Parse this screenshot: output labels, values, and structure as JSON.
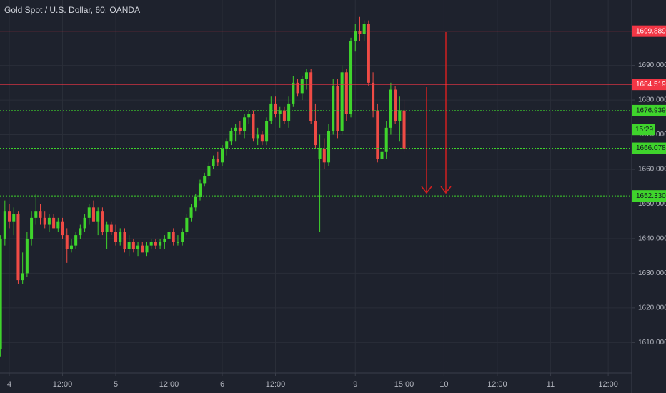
{
  "chart_data": {
    "type": "candlestick",
    "title": "Gold Spot / U.S. Dollar, 60, OANDA",
    "up_color": "#3fd42c",
    "down_color": "#ef4b45",
    "open": [
      1608,
      1640,
      1648,
      1645,
      1647,
      1628,
      1630,
      1640,
      1646,
      1648,
      1646,
      1644,
      1646,
      1643,
      1645,
      1641,
      1637,
      1638,
      1641,
      1643,
      1646,
      1649,
      1645,
      1648,
      1642,
      1644,
      1642,
      1639,
      1642,
      1637,
      1639,
      1637,
      1638,
      1636,
      1638,
      1639,
      1638,
      1639,
      1640,
      1642,
      1639,
      1639,
      1642,
      1646,
      1649,
      1652,
      1656,
      1658,
      1661,
      1663,
      1662,
      1666,
      1668,
      1671,
      1672,
      1671,
      1675,
      1676,
      1669,
      1670,
      1668,
      1674,
      1679,
      1676,
      1677,
      1674,
      1679,
      1685,
      1682,
      1686,
      1688,
      1674,
      1663,
      1666,
      1662,
      1671,
      1684,
      1671,
      1688,
      1676,
      1697,
      1700,
      1699,
      1702,
      1685,
      1677,
      1663,
      1665,
      1672,
      1683,
      1674,
      1677
    ],
    "high": [
      1641,
      1651,
      1650,
      1649,
      1648,
      1636,
      1642,
      1648,
      1653,
      1650,
      1648,
      1647,
      1647,
      1646,
      1646,
      1643,
      1640,
      1642,
      1644,
      1647,
      1650,
      1651,
      1649,
      1649,
      1645,
      1645,
      1644,
      1643,
      1643,
      1641,
      1640,
      1639,
      1639,
      1639,
      1640,
      1640,
      1640,
      1641,
      1643,
      1643,
      1641,
      1643,
      1647,
      1650,
      1653,
      1657,
      1659,
      1662,
      1664,
      1665,
      1667,
      1669,
      1672,
      1673,
      1674,
      1676,
      1677,
      1677,
      1672,
      1671,
      1675,
      1681,
      1681,
      1678,
      1678,
      1681,
      1687,
      1686,
      1687,
      1689,
      1689,
      1679,
      1670,
      1669,
      1673,
      1686,
      1686,
      1690,
      1689,
      1698,
      1702,
      1704,
      1703,
      1703,
      1688,
      1679,
      1667,
      1674,
      1685,
      1684,
      1681,
      1680
    ],
    "low": [
      1606,
      1638,
      1643,
      1641,
      1627,
      1627,
      1629,
      1638,
      1644,
      1644,
      1643,
      1642,
      1643,
      1642,
      1640,
      1633,
      1636,
      1637,
      1640,
      1642,
      1644,
      1645,
      1641,
      1641,
      1637,
      1641,
      1638,
      1638,
      1636,
      1635,
      1636,
      1635,
      1636,
      1635,
      1637,
      1637,
      1637,
      1637,
      1639,
      1638,
      1638,
      1638,
      1641,
      1645,
      1648,
      1651,
      1655,
      1657,
      1660,
      1661,
      1661,
      1664,
      1667,
      1668,
      1670,
      1669,
      1673,
      1668,
      1667,
      1667,
      1667,
      1673,
      1675,
      1672,
      1673,
      1672,
      1678,
      1681,
      1680,
      1683,
      1673,
      1666,
      1642,
      1660,
      1661,
      1670,
      1669,
      1670,
      1674,
      1675,
      1694,
      1697,
      1697,
      1684,
      1675,
      1662,
      1658,
      1663,
      1670,
      1673,
      1668,
      1665
    ],
    "close": [
      1640,
      1648,
      1645,
      1647,
      1628,
      1630,
      1640,
      1646,
      1648,
      1646,
      1644,
      1646,
      1643,
      1645,
      1641,
      1637,
      1638,
      1641,
      1643,
      1646,
      1649,
      1645,
      1648,
      1642,
      1644,
      1642,
      1639,
      1642,
      1637,
      1639,
      1637,
      1638,
      1636,
      1638,
      1639,
      1638,
      1639,
      1640,
      1642,
      1639,
      1639,
      1642,
      1646,
      1649,
      1652,
      1656,
      1658,
      1661,
      1663,
      1662,
      1666,
      1668,
      1671,
      1672,
      1671,
      1675,
      1676,
      1669,
      1670,
      1668,
      1674,
      1679,
      1676,
      1677,
      1674,
      1679,
      1685,
      1682,
      1686,
      1688,
      1674,
      1667,
      1666,
      1662,
      1671,
      1684,
      1671,
      1688,
      1676,
      1697,
      1700,
      1699,
      1702,
      1685,
      1677,
      1663,
      1665,
      1672,
      1683,
      1674,
      1677,
      1666
    ],
    "xlim": [
      -0.1,
      142.3
    ],
    "xticks": [
      {
        "value": 2,
        "label": "4"
      },
      {
        "value": 14,
        "label": "12:00"
      },
      {
        "value": 26,
        "label": "5"
      },
      {
        "value": 38,
        "label": "12:00"
      },
      {
        "value": 50,
        "label": "6"
      },
      {
        "value": 62,
        "label": "12:00"
      },
      {
        "value": 80,
        "label": "9"
      },
      {
        "value": 91,
        "label": "15:00"
      },
      {
        "value": 100,
        "label": "10"
      },
      {
        "value": 112,
        "label": "12:00"
      },
      {
        "value": 124,
        "label": "11"
      },
      {
        "value": 137,
        "label": "12:00"
      }
    ],
    "ylim": [
      1601.2,
      1708.9
    ],
    "yticks": [
      {
        "value": 1610,
        "label": "1610.000"
      },
      {
        "value": 1620,
        "label": "1620.000"
      },
      {
        "value": 1630,
        "label": "1630.000"
      },
      {
        "value": 1640,
        "label": "1640.000"
      },
      {
        "value": 1650,
        "label": "1650.000"
      },
      {
        "value": 1660,
        "label": "1660.000"
      },
      {
        "value": 1670,
        "label": "1670.000"
      },
      {
        "value": 1680,
        "label": "1680.000"
      },
      {
        "value": 1690,
        "label": "1690.000"
      }
    ],
    "grid": true,
    "levels": [
      {
        "value": 1699.889,
        "label": "1699.889",
        "color": "#f23645",
        "style": "solid"
      },
      {
        "value": 1684.519,
        "label": "1684.519",
        "color": "#f23645",
        "style": "solid"
      },
      {
        "value": 1676.939,
        "label": "1676.939",
        "color": "#3fd42c",
        "style": "dotted"
      },
      {
        "value": 1666.078,
        "label": "1666.078",
        "color": "#3fd42c",
        "style": "dotted"
      },
      {
        "value": 1652.33,
        "label": "1652.330",
        "color": "#3fd42c",
        "style": "dotted"
      }
    ],
    "countdown": "15:29"
  }
}
